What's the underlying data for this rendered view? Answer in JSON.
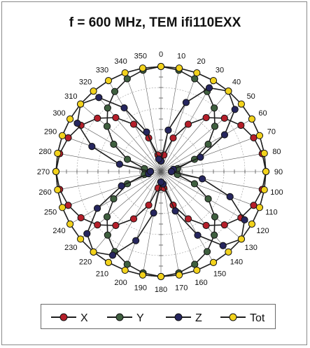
{
  "chart_data": {
    "type": "polar-line",
    "title": "f = 600 MHz, TEM  ifi110EXX",
    "angle_ticks": [
      "0",
      "10",
      "20",
      "30",
      "40",
      "50",
      "60",
      "70",
      "80",
      "90",
      "100",
      "110",
      "120",
      "130",
      "140",
      "150",
      "160",
      "170",
      "180",
      "190",
      "200",
      "210",
      "220",
      "230",
      "240",
      "250",
      "260",
      "270",
      "280",
      "290",
      "300",
      "310",
      "320",
      "330",
      "340",
      "350"
    ],
    "angles_deg": [
      0,
      10,
      20,
      30,
      40,
      50,
      60,
      70,
      80,
      90,
      100,
      110,
      120,
      130,
      140,
      150,
      160,
      170,
      180,
      190,
      200,
      210,
      220,
      230,
      240,
      250,
      260,
      270,
      280,
      290,
      300,
      310,
      320,
      330,
      340,
      350
    ],
    "r_max": 1.0,
    "grid": true,
    "legend_position": "bottom",
    "series": [
      {
        "name": "X",
        "color": "#b51f2a",
        "values": [
          0.1,
          0.16,
          0.34,
          0.52,
          0.67,
          0.79,
          0.88,
          0.94,
          0.98,
          1.0,
          0.98,
          0.94,
          0.88,
          0.79,
          0.67,
          0.52,
          0.34,
          0.16,
          0.1,
          0.16,
          0.34,
          0.52,
          0.67,
          0.79,
          0.88,
          0.94,
          0.98,
          1.0,
          0.98,
          0.94,
          0.88,
          0.79,
          0.67,
          0.52,
          0.34,
          0.16
        ]
      },
      {
        "name": "Y",
        "color": "#3f5f3f",
        "values": [
          1.0,
          0.98,
          0.94,
          0.88,
          0.79,
          0.67,
          0.52,
          0.34,
          0.16,
          0.1,
          0.16,
          0.34,
          0.52,
          0.67,
          0.79,
          0.88,
          0.94,
          0.98,
          1.0,
          0.98,
          0.94,
          0.88,
          0.79,
          0.67,
          0.52,
          0.34,
          0.16,
          0.1,
          0.16,
          0.34,
          0.52,
          0.67,
          0.79,
          0.88,
          0.94,
          0.98
        ]
      },
      {
        "name": "Z",
        "color": "#26265e",
        "values": [
          0.1,
          0.4,
          0.7,
          0.92,
          1.0,
          0.92,
          0.7,
          0.4,
          0.12,
          0.1,
          0.4,
          0.7,
          0.92,
          1.0,
          0.92,
          0.7,
          0.4,
          0.12,
          0.1,
          0.4,
          0.7,
          0.92,
          1.0,
          0.92,
          0.7,
          0.4,
          0.12,
          0.1,
          0.4,
          0.7,
          0.92,
          1.0,
          0.92,
          0.7,
          0.4,
          0.12
        ]
      },
      {
        "name": "Tot",
        "color": "#f2d21c",
        "values": [
          1.0,
          1.0,
          1.0,
          1.0,
          1.0,
          1.0,
          1.0,
          1.0,
          1.0,
          1.0,
          1.0,
          1.0,
          1.0,
          1.0,
          1.0,
          1.0,
          1.0,
          1.0,
          1.0,
          1.0,
          1.0,
          1.0,
          1.0,
          1.0,
          1.0,
          1.0,
          1.0,
          1.0,
          1.0,
          1.0,
          1.0,
          1.0,
          1.0,
          1.0,
          1.0,
          1.0
        ]
      }
    ]
  }
}
